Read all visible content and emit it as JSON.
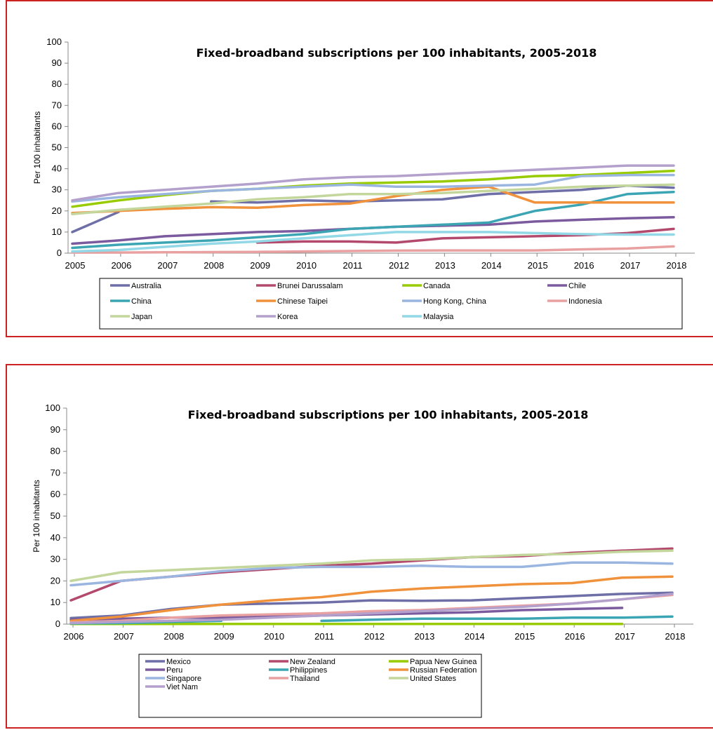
{
  "chart_data": [
    {
      "type": "line",
      "title": "Fixed-broadband subscriptions per 100 inhabitants, 2005-2018",
      "ylabel": "Per 100 inhabitants",
      "xlabel": "",
      "ylim": [
        0,
        100
      ],
      "yticks": [
        0,
        10,
        20,
        30,
        40,
        50,
        60,
        70,
        80,
        90,
        100
      ],
      "grid": false,
      "legend_position": "bottom",
      "x": [
        "2005",
        "2006",
        "2007",
        "2008",
        "2009",
        "2010",
        "2011",
        "2012",
        "2013",
        "2014",
        "2015",
        "2016",
        "2017",
        "2018"
      ],
      "series": [
        {
          "name": "Australia",
          "color": "#6f6fa8",
          "values": [
            10,
            19.5,
            null,
            24.5,
            24,
            25,
            24.5,
            25,
            25.5,
            28,
            29,
            30,
            32,
            31
          ]
        },
        {
          "name": "Brunei Darussalam",
          "color": "#b34a6e",
          "values": [
            null,
            null,
            null,
            null,
            5,
            5.5,
            5.5,
            5,
            7,
            7.5,
            8,
            8.5,
            9.5,
            11.5
          ]
        },
        {
          "name": "Canada",
          "color": "#99cc00",
          "values": [
            22,
            25,
            27.5,
            29.5,
            30.5,
            32,
            33,
            33.5,
            34,
            35,
            36.5,
            37,
            38,
            39
          ]
        },
        {
          "name": "Chile",
          "color": "#7b5a9e",
          "values": [
            4.5,
            6,
            8,
            9,
            10,
            10.5,
            11.5,
            12.5,
            13,
            13.5,
            15,
            15.8,
            16.5,
            17
          ]
        },
        {
          "name": "China",
          "color": "#3ca5b4",
          "values": [
            2.5,
            4,
            5,
            6,
            7.5,
            9,
            11.5,
            12.5,
            13.5,
            14.5,
            20,
            23,
            28,
            29
          ]
        },
        {
          "name": "Chinese Taipei",
          "color": "#f0913c",
          "values": [
            19,
            20,
            21,
            21.8,
            21.5,
            22.8,
            23.5,
            27,
            30,
            31.5,
            24,
            24,
            24,
            24
          ]
        },
        {
          "name": "Hong Kong, China",
          "color": "#9ab6e0",
          "values": [
            24.5,
            26.5,
            28,
            29.5,
            30.5,
            31.5,
            32.5,
            31.5,
            31.5,
            32,
            32.5,
            36.5,
            37,
            37
          ]
        },
        {
          "name": "Indonesia",
          "color": "#e8a0a0",
          "values": [
            0.3,
            0.3,
            0.4,
            0.5,
            0.6,
            0.8,
            1,
            1.2,
            1.3,
            1.3,
            1.3,
            1.8,
            2.2,
            3.2
          ]
        },
        {
          "name": "Japan",
          "color": "#c3d69b",
          "values": [
            18.5,
            20.5,
            22,
            23.5,
            25.5,
            26.5,
            28,
            28,
            28.5,
            29.5,
            30.5,
            31.5,
            32,
            32.5
          ]
        },
        {
          "name": "Korea",
          "color": "#b4a0cc",
          "values": [
            25,
            28.5,
            30,
            31.5,
            33,
            35,
            36,
            36.5,
            37.5,
            38.5,
            39.5,
            40.5,
            41.5,
            41.5
          ]
        },
        {
          "name": "Malaysia",
          "color": "#92d8e6",
          "values": [
            0.8,
            1.5,
            3,
            4.5,
            5.5,
            7,
            8.5,
            10,
            10,
            10,
            9.5,
            9,
            8.8,
            8.8
          ]
        }
      ]
    },
    {
      "type": "line",
      "title": "Fixed-broadband subscriptions per 100 inhabitants, 2005-2018",
      "ylabel": "Per 100 inhabitants",
      "xlabel": "",
      "ylim": [
        0,
        100
      ],
      "yticks": [
        0,
        10,
        20,
        30,
        40,
        50,
        60,
        70,
        80,
        90,
        100
      ],
      "grid": false,
      "legend_position": "bottom",
      "x": [
        "2006",
        "2007",
        "2008",
        "2009",
        "2010",
        "2011",
        "2012",
        "2013",
        "2014",
        "2015",
        "2016",
        "2017",
        "2018"
      ],
      "series": [
        {
          "name": "Mexico",
          "color": "#6f6fa8",
          "values": [
            2.8,
            4,
            7,
            9,
            9.5,
            10,
            11,
            10.8,
            11,
            12,
            13,
            14,
            14.5
          ]
        },
        {
          "name": "New Zealand",
          "color": "#b34a6e",
          "values": [
            11,
            20,
            22,
            24,
            25.5,
            27,
            28,
            29.5,
            31,
            31.5,
            33,
            34,
            35
          ]
        },
        {
          "name": "Papua New Guinea",
          "color": "#99cc00",
          "values": [
            0.1,
            0.1,
            0.1,
            0.1,
            0.1,
            0.1,
            0.1,
            0.1,
            0.1,
            0.1,
            0.1,
            0.1,
            null
          ]
        },
        {
          "name": "Peru",
          "color": "#7b5a9e",
          "values": [
            2,
            2.5,
            3,
            3,
            3.5,
            4,
            4.5,
            5,
            5.5,
            6.5,
            7,
            7.5,
            null
          ]
        },
        {
          "name": "Philippines",
          "color": "#3ca5b4",
          "values": [
            0.3,
            0.5,
            1,
            1.5,
            null,
            1.5,
            2,
            2.5,
            2.5,
            2.5,
            3,
            3,
            3.5
          ]
        },
        {
          "name": "Russian Federation",
          "color": "#f0913c",
          "values": [
            1.5,
            3.5,
            6.5,
            9,
            11,
            12.5,
            15,
            16.5,
            17.5,
            18.5,
            19,
            21.5,
            22
          ]
        },
        {
          "name": "Singapore",
          "color": "#9ab6e0",
          "values": [
            18,
            20,
            22,
            24.5,
            26,
            26.5,
            26.5,
            27,
            26.5,
            26.5,
            28.5,
            28.5,
            28
          ]
        },
        {
          "name": "Thailand",
          "color": "#e8a0a0",
          "values": [
            0.8,
            1.5,
            3,
            4,
            4.5,
            5,
            6,
            6.5,
            7.5,
            8.5,
            9.5,
            11.5,
            13.5
          ]
        },
        {
          "name": "United States",
          "color": "#c3d69b",
          "values": [
            20,
            24,
            25,
            26,
            27,
            28,
            29.5,
            30,
            31,
            32,
            32.5,
            33.5,
            34
          ]
        },
        {
          "name": "Viet Nam",
          "color": "#b4a0cc",
          "values": [
            0.5,
            1,
            1.5,
            2,
            3,
            4,
            5,
            6,
            7,
            8,
            9.5,
            11.5,
            14
          ]
        }
      ]
    }
  ]
}
